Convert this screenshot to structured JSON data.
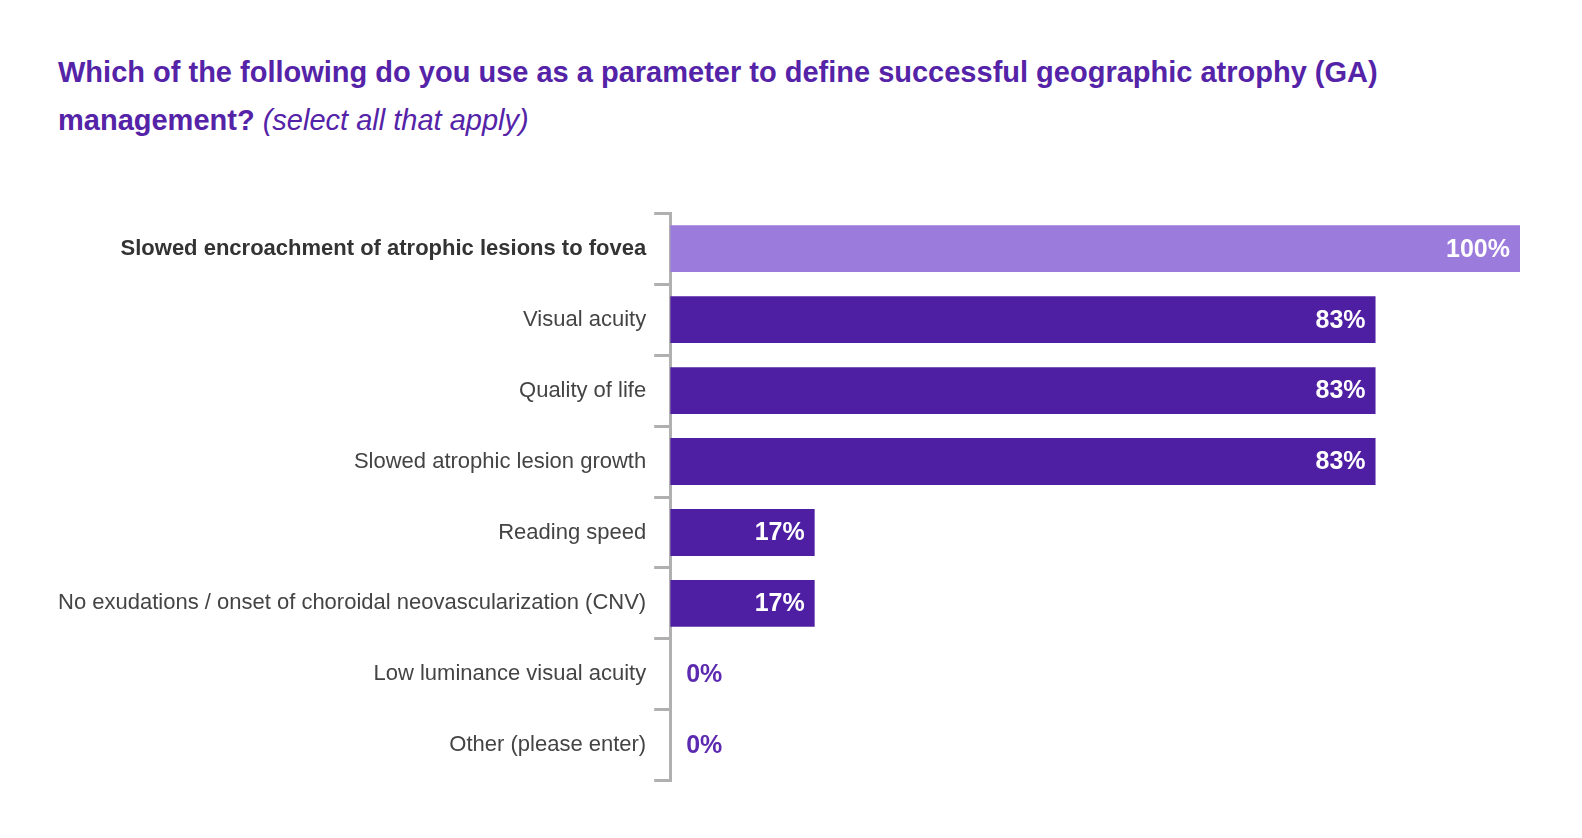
{
  "chart_data": {
    "type": "bar",
    "title": "Which of the following do you use as a parameter to define successful geographic atrophy (GA) management?",
    "subtitle": "(select all that apply)",
    "orientation": "horizontal",
    "categories": [
      "Slowed encroachment of atrophic lesions to fovea",
      "Visual acuity",
      "Quality of life",
      "Slowed atrophic lesion growth",
      "Reading speed",
      "No exudations / onset of choroidal neovascularization (CNV)",
      "Low luminance visual acuity",
      "Other (please enter)"
    ],
    "values": [
      100,
      83,
      83,
      83,
      17,
      17,
      0,
      0
    ],
    "value_labels": [
      "100%",
      "83%",
      "83%",
      "83%",
      "17%",
      "17%",
      "0%",
      "0%"
    ],
    "colors": [
      "#9b7bdc",
      "#4f1fa3",
      "#4f1fa3",
      "#4f1fa3",
      "#4f1fa3",
      "#4f1fa3",
      "#4f1fa3",
      "#4f1fa3"
    ],
    "xlim": [
      0,
      100
    ],
    "grid": false,
    "data_labels": true,
    "tick_labels": "y"
  }
}
